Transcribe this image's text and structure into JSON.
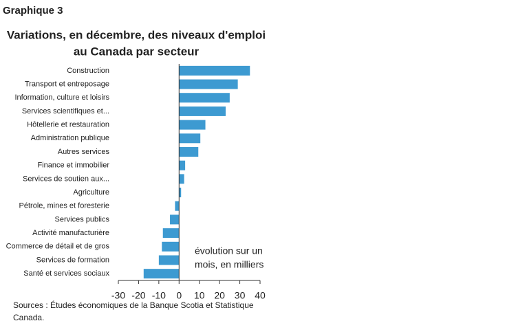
{
  "chart_data": {
    "type": "barh",
    "label": "Graphique 3",
    "title": [
      "Variations, en décembre, des niveaux d'emploi",
      "au Canada par secteur"
    ],
    "categories": [
      "Construction",
      "Transport et entreposage",
      "Information, culture et loisirs",
      "Services scientifiques et...",
      "Hôtellerie et restauration",
      "Administration publique",
      "Autres services",
      "Finance et immobilier",
      "Services de soutien aux...",
      "Agriculture",
      "Pétrole, mines et foresterie",
      "Services publics",
      "Activité manufacturière",
      "Commerce de détail et de gros",
      "Services de formation",
      "Santé et services sociaux"
    ],
    "values": [
      35,
      29,
      25,
      23,
      13,
      10.5,
      9.5,
      3,
      2.5,
      1,
      -2,
      -4.5,
      -8,
      -8.5,
      -10,
      -17.5
    ],
    "color": "#3d9ad1",
    "xlim": [
      -30,
      40
    ],
    "xticks": [
      -30,
      -20,
      -10,
      0,
      10,
      20,
      30,
      40
    ],
    "annotation": [
      "évolution sur un",
      "mois, en milliers"
    ],
    "source": [
      "Sources : Études économiques de la Banque Scotia et Statistique",
      "Canada."
    ]
  }
}
